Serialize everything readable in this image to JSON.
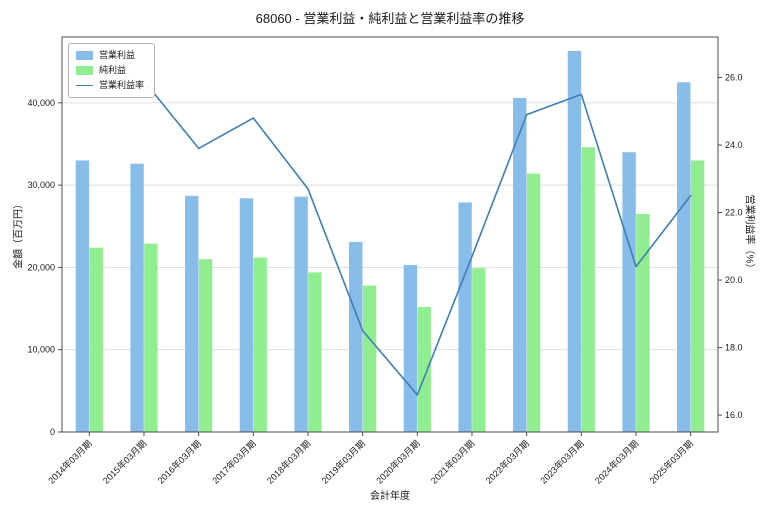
{
  "title": "68060 - 営業利益・純利益と営業利益率の推移",
  "chart_data": {
    "type": "bar",
    "title": "68060 - 営業利益・純利益と営業利益率の推移",
    "xlabel": "会計年度",
    "ylabel_left": "金額（百万円）",
    "ylabel_right": "営業利益率（%）",
    "categories": [
      "2014年03月期",
      "2015年03月期",
      "2016年03月期",
      "2017年03月期",
      "2018年03月期",
      "2019年03月期",
      "2020年03月期",
      "2021年03月期",
      "2022年03月期",
      "2023年03月期",
      "2024年03月期",
      "2025年03月期"
    ],
    "series": [
      {
        "key": "operating-profit",
        "name": "営業利益",
        "type": "bar",
        "axis": "left",
        "color": "#87BDE8",
        "values": [
          33000,
          32600,
          28700,
          28400,
          28600,
          23100,
          20300,
          27900,
          40600,
          46300,
          34000,
          42500
        ]
      },
      {
        "key": "net-profit",
        "name": "純利益",
        "type": "bar",
        "axis": "left",
        "color": "#90EE90",
        "values": [
          22400,
          22900,
          21000,
          21200,
          19400,
          17800,
          15200,
          19900,
          31400,
          34600,
          26500,
          33000
        ]
      },
      {
        "key": "operating-margin",
        "name": "営業利益率",
        "type": "line",
        "axis": "right",
        "color": "#3E7FB5",
        "values": [
          26.0,
          25.9,
          23.9,
          24.8,
          22.7,
          18.5,
          16.6,
          20.7,
          24.9,
          25.5,
          20.4,
          22.5
        ]
      }
    ],
    "left_axis": {
      "ticks": [
        0,
        10000,
        20000,
        30000,
        40000
      ],
      "tick_labels": [
        "0",
        "10,000",
        "20,000",
        "30,000",
        "40,000"
      ],
      "range": [
        0,
        48000
      ]
    },
    "right_axis": {
      "ticks": [
        16,
        18,
        20,
        22,
        24,
        26
      ],
      "tick_labels": [
        "16.0",
        "18.0",
        "20.0",
        "22.0",
        "24.0",
        "26.0"
      ],
      "range": [
        15.5,
        27.2
      ]
    },
    "grid": true,
    "legend_position": "upper-left"
  }
}
